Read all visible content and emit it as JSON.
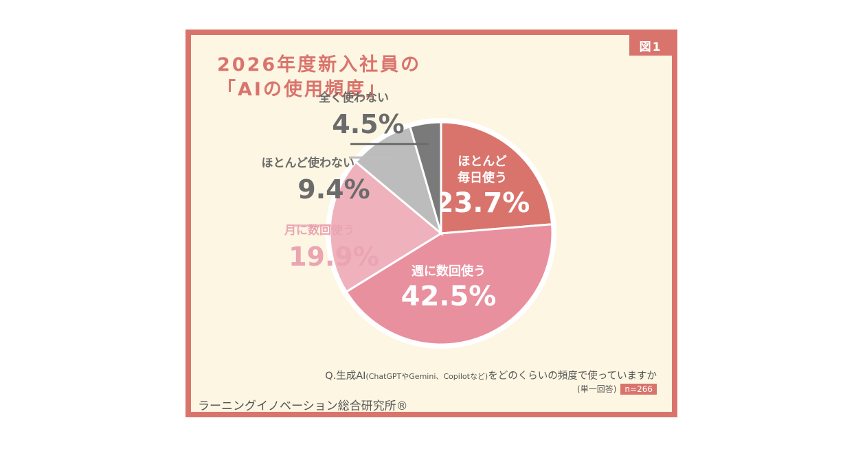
{
  "figure_tag": "図1",
  "title": {
    "line1": "2026年度新入社員の",
    "line2": "「AIの使用頻度」"
  },
  "question": {
    "prefix": "Q.生成AI",
    "paren": "(ChatGPTやGemini、Copilotなど)",
    "suffix": "をどのくらいの頻度で使っていますか"
  },
  "sample": {
    "note": "(単一回答)",
    "n": "n=266"
  },
  "organization": "ラーニングイノベーション総合研究所®",
  "chart_data": {
    "type": "pie",
    "unit": "%",
    "slices": [
      {
        "label_lines": [
          "ほとんど",
          "毎日使う"
        ],
        "value": 23.7,
        "value_text": "23.7%",
        "color": "#d9746d",
        "label_color": "#ffffff"
      },
      {
        "label_lines": [
          "週に数回使う"
        ],
        "value": 42.5,
        "value_text": "42.5%",
        "color": "#e9909f",
        "label_color": "#ffffff"
      },
      {
        "label_lines": [
          "月に数回使う"
        ],
        "value": 19.9,
        "value_text": "19.9%",
        "color": "#efb2bd",
        "label_color": "#eaa4b2"
      },
      {
        "label_lines": [
          "ほとんど使わない"
        ],
        "value": 9.4,
        "value_text": "9.4%",
        "color": "#bcbcbc",
        "label_color": "#6b6b6b"
      },
      {
        "label_lines": [
          "全く使わない"
        ],
        "value": 4.5,
        "value_text": "4.5%",
        "color": "#7a7a7a",
        "label_color": "#6b6b6b"
      }
    ]
  }
}
